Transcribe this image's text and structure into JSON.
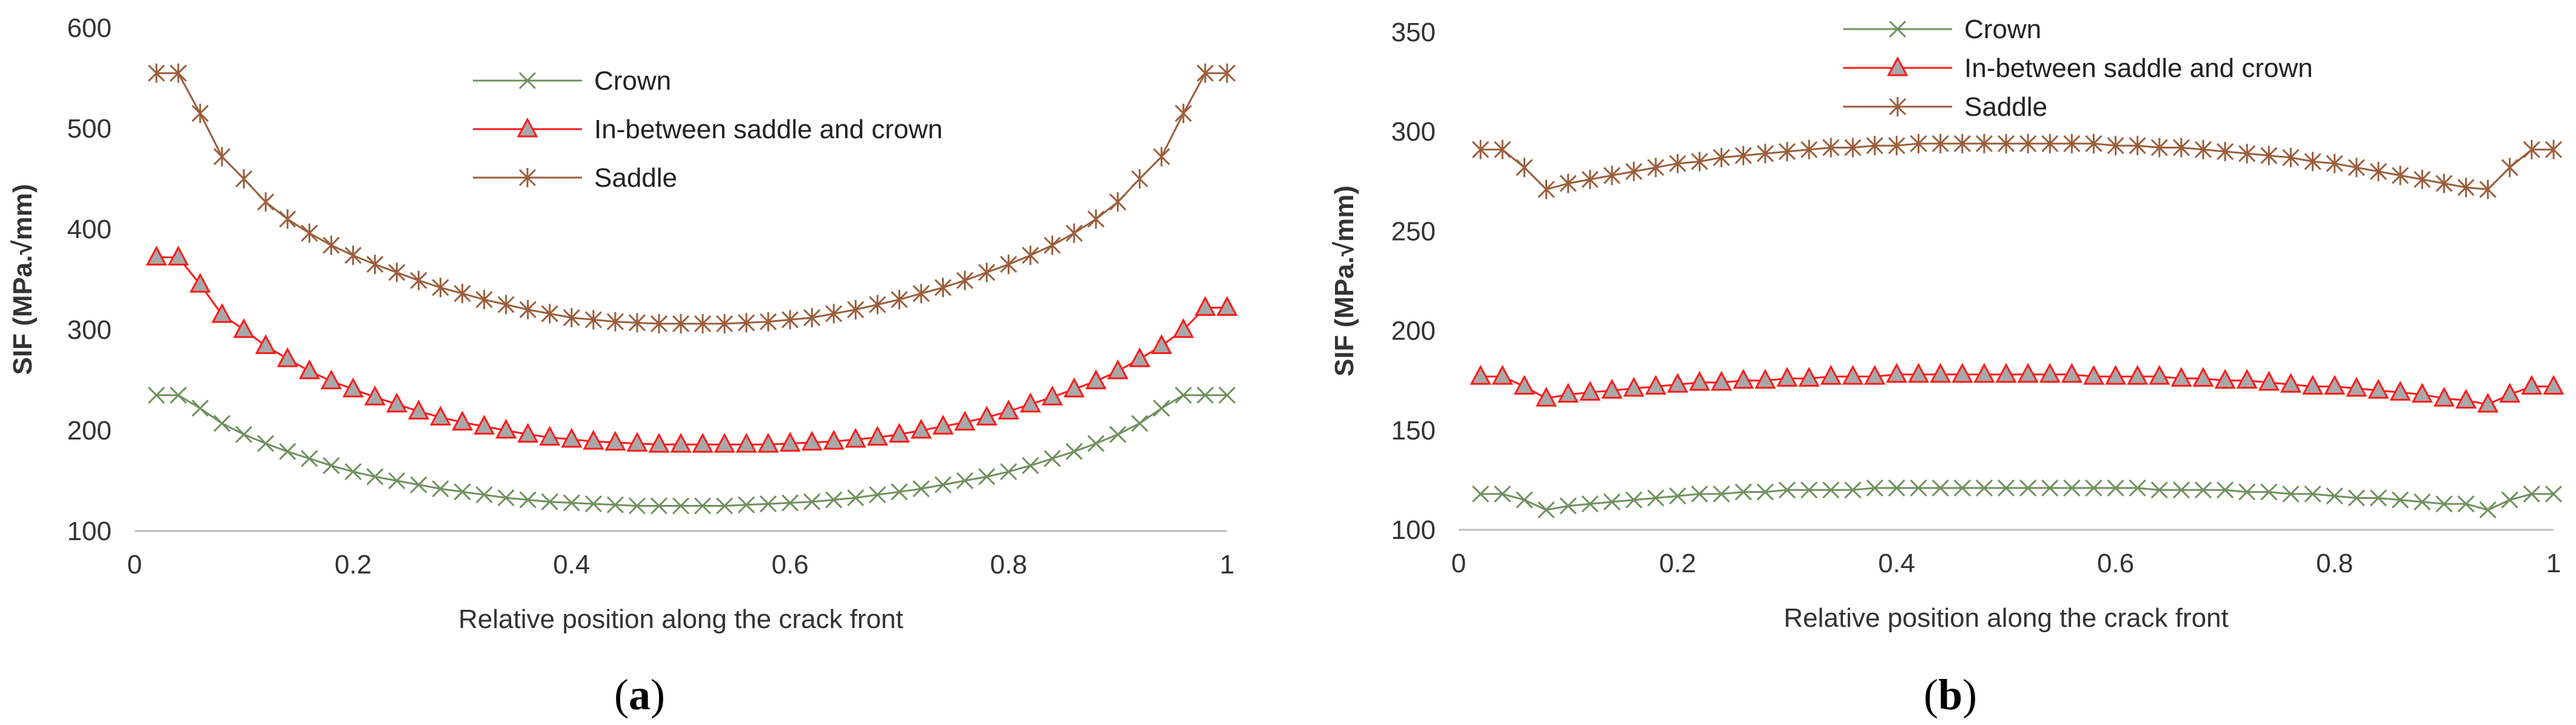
{
  "colors": {
    "crown": "#70905e",
    "between": "#ff1a1a",
    "between_fill": "#a8a8a8",
    "saddle": "#9b5e3c",
    "axis": "#bfbfbf"
  },
  "chart_data": [
    {
      "type": "line",
      "caption": "a",
      "xlabel": "Relative position along the crack front",
      "ylabel": "SIF (MPa.√mm)",
      "xlim": [
        0,
        1
      ],
      "ylim": [
        100,
        600
      ],
      "xticks": [
        "0",
        "0.2",
        "0.4",
        "0.6",
        "0.8",
        "1"
      ],
      "yticks": [
        "100",
        "200",
        "300",
        "400",
        "500",
        "600"
      ],
      "legend_position": "top-center",
      "x": [
        0.02,
        0.04,
        0.06,
        0.08,
        0.1,
        0.12,
        0.14,
        0.16,
        0.18,
        0.2,
        0.22,
        0.24,
        0.26,
        0.28,
        0.3,
        0.32,
        0.34,
        0.36,
        0.38,
        0.4,
        0.42,
        0.44,
        0.46,
        0.48,
        0.5,
        0.52,
        0.54,
        0.56,
        0.58,
        0.6,
        0.62,
        0.64,
        0.66,
        0.68,
        0.7,
        0.72,
        0.74,
        0.76,
        0.78,
        0.8,
        0.82,
        0.84,
        0.86,
        0.88,
        0.9,
        0.92,
        0.94,
        0.96,
        0.98,
        1.0
      ],
      "series": [
        {
          "name": "Crown",
          "marker": "x",
          "color_key": "crown",
          "values": [
            235,
            235,
            222,
            207,
            196,
            187,
            179,
            172,
            165,
            159,
            154,
            150,
            146,
            142,
            139,
            136,
            133,
            131,
            129,
            128,
            127,
            126,
            125,
            125,
            125,
            125,
            125,
            126,
            127,
            128,
            129,
            131,
            133,
            136,
            139,
            142,
            146,
            150,
            154,
            159,
            165,
            172,
            179,
            187,
            196,
            207,
            222,
            235,
            235,
            235
          ]
        },
        {
          "name": "In-between saddle and crown",
          "marker": "triangle",
          "color_key": "between",
          "values": [
            372,
            372,
            345,
            315,
            300,
            284,
            271,
            259,
            249,
            241,
            233,
            226,
            219,
            213,
            208,
            204,
            200,
            196,
            193,
            191,
            189,
            188,
            187,
            186,
            186,
            186,
            186,
            186,
            186,
            187,
            188,
            189,
            191,
            193,
            196,
            200,
            204,
            208,
            213,
            219,
            226,
            233,
            241,
            249,
            259,
            271,
            284,
            300,
            322,
            322
          ]
        },
        {
          "name": "Saddle",
          "marker": "star",
          "color_key": "saddle",
          "values": [
            555,
            555,
            515,
            472,
            450,
            427,
            410,
            396,
            384,
            374,
            365,
            357,
            349,
            342,
            336,
            330,
            325,
            320,
            316,
            312,
            310,
            308,
            307,
            306,
            306,
            306,
            306,
            307,
            308,
            310,
            312,
            316,
            320,
            325,
            330,
            336,
            342,
            349,
            357,
            365,
            374,
            384,
            396,
            410,
            427,
            450,
            472,
            515,
            555,
            555
          ]
        }
      ]
    },
    {
      "type": "line",
      "caption": "b",
      "xlabel": "Relative position along the crack front",
      "ylabel": "SIF (MPa.√mm)",
      "xlim": [
        0,
        1
      ],
      "ylim": [
        100,
        350
      ],
      "xticks": [
        "0",
        "0.2",
        "0.4",
        "0.6",
        "0.8",
        "1"
      ],
      "yticks": [
        "100",
        "150",
        "200",
        "250",
        "300",
        "350"
      ],
      "legend_position": "top-center",
      "x": [
        0.02,
        0.04,
        0.06,
        0.08,
        0.1,
        0.12,
        0.14,
        0.16,
        0.18,
        0.2,
        0.22,
        0.24,
        0.26,
        0.28,
        0.3,
        0.32,
        0.34,
        0.36,
        0.38,
        0.4,
        0.42,
        0.44,
        0.46,
        0.48,
        0.5,
        0.52,
        0.54,
        0.56,
        0.58,
        0.6,
        0.62,
        0.64,
        0.66,
        0.68,
        0.7,
        0.72,
        0.74,
        0.76,
        0.78,
        0.8,
        0.82,
        0.84,
        0.86,
        0.88,
        0.9,
        0.92,
        0.94,
        0.96,
        0.98,
        1.0
      ],
      "series": [
        {
          "name": "Crown",
          "marker": "x",
          "color_key": "crown",
          "values": [
            118,
            118,
            115,
            110,
            112,
            113,
            114,
            115,
            116,
            117,
            118,
            118,
            119,
            119,
            120,
            120,
            120,
            120,
            121,
            121,
            121,
            121,
            121,
            121,
            121,
            121,
            121,
            121,
            121,
            121,
            121,
            120,
            120,
            120,
            120,
            119,
            119,
            118,
            118,
            117,
            116,
            116,
            115,
            114,
            113,
            113,
            110,
            115,
            118,
            118
          ]
        },
        {
          "name": "In-between saddle and crown",
          "marker": "triangle",
          "color_key": "between",
          "values": [
            177,
            177,
            172,
            166,
            168,
            169,
            170,
            171,
            172,
            173,
            174,
            174,
            175,
            175,
            176,
            176,
            177,
            177,
            177,
            178,
            178,
            178,
            178,
            178,
            178,
            178,
            178,
            178,
            177,
            177,
            177,
            177,
            176,
            176,
            175,
            175,
            174,
            173,
            172,
            172,
            171,
            170,
            169,
            168,
            166,
            165,
            163,
            168,
            172,
            172
          ]
        },
        {
          "name": "Saddle",
          "marker": "star",
          "color_key": "saddle",
          "values": [
            291,
            291,
            282,
            271,
            274,
            276,
            278,
            280,
            282,
            284,
            285,
            287,
            288,
            289,
            290,
            291,
            292,
            292,
            293,
            293,
            294,
            294,
            294,
            294,
            294,
            294,
            294,
            294,
            294,
            293,
            293,
            292,
            292,
            291,
            290,
            289,
            288,
            287,
            285,
            284,
            282,
            280,
            278,
            276,
            274,
            272,
            271,
            282,
            291,
            291
          ]
        }
      ]
    }
  ]
}
